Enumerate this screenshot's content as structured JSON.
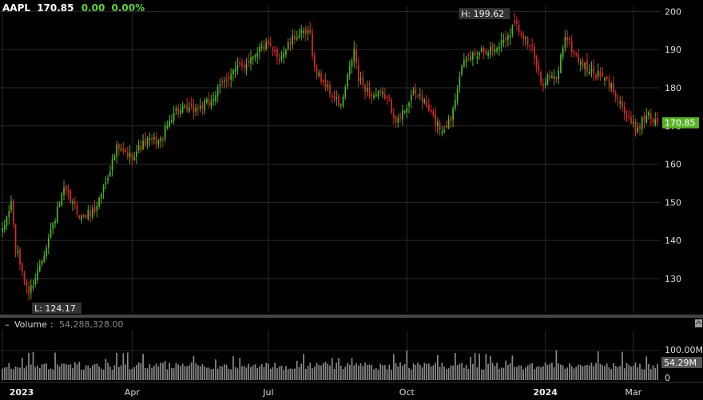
{
  "header": {
    "symbol": "AAPL",
    "last": "170.85",
    "change": "0.00",
    "change_pct": "0.00%"
  },
  "colors": {
    "up": "#4fb52a",
    "down": "#d42b2b",
    "grid": "#2a2a2a",
    "volume": "#8a8a8a",
    "last_badge": "#5bb32b"
  },
  "annotations": {
    "high_label": "H: 199.62",
    "low_label": "L: 124.17"
  },
  "volume_panel": {
    "label": "Volume",
    "value": "54,288,328.00",
    "axis_labels": [
      "100.00M",
      "0"
    ],
    "last_badge": "54.29M",
    "max": 130
  },
  "chart_data": {
    "type": "candlestick",
    "title": "AAPL",
    "last_price": 170.85,
    "last_label": "170.85",
    "ylim": [
      121,
      203
    ],
    "y_ticks": [
      130,
      140,
      150,
      160,
      170,
      180,
      190,
      200
    ],
    "x_tick_labels": [
      {
        "label": "2023",
        "bold": true,
        "index": 0
      },
      {
        "label": "Apr",
        "bold": false,
        "index": 59
      },
      {
        "label": "Jul",
        "bold": false,
        "index": 121
      },
      {
        "label": "Oct",
        "bold": false,
        "index": 184
      },
      {
        "label": "2024",
        "bold": true,
        "index": 247
      },
      {
        "label": "Mar",
        "bold": false,
        "index": 287
      }
    ],
    "high": {
      "value": 199.62,
      "index": 233
    },
    "low": {
      "value": 124.17,
      "index": 12
    },
    "close_anchors": [
      [
        0,
        142
      ],
      [
        4,
        150
      ],
      [
        6,
        138
      ],
      [
        12,
        126
      ],
      [
        16,
        132
      ],
      [
        24,
        146
      ],
      [
        28,
        153
      ],
      [
        36,
        146
      ],
      [
        42,
        148
      ],
      [
        46,
        154
      ],
      [
        52,
        164
      ],
      [
        58,
        162
      ],
      [
        66,
        166
      ],
      [
        72,
        166
      ],
      [
        78,
        174
      ],
      [
        86,
        174
      ],
      [
        94,
        176
      ],
      [
        104,
        184
      ],
      [
        110,
        186
      ],
      [
        116,
        190
      ],
      [
        120,
        191
      ],
      [
        126,
        188
      ],
      [
        134,
        194
      ],
      [
        140,
        194
      ],
      [
        142,
        185
      ],
      [
        150,
        178
      ],
      [
        154,
        175
      ],
      [
        160,
        190
      ],
      [
        162,
        182
      ],
      [
        168,
        178
      ],
      [
        174,
        178
      ],
      [
        180,
        171
      ],
      [
        186,
        178
      ],
      [
        190,
        178
      ],
      [
        196,
        172
      ],
      [
        200,
        169
      ],
      [
        204,
        172
      ],
      [
        208,
        184
      ],
      [
        212,
        188
      ],
      [
        218,
        190
      ],
      [
        224,
        190
      ],
      [
        230,
        194
      ],
      [
        233,
        197
      ],
      [
        237,
        194
      ],
      [
        241,
        190
      ],
      [
        245,
        181
      ],
      [
        248,
        183
      ],
      [
        252,
        182
      ],
      [
        256,
        194
      ],
      [
        260,
        189
      ],
      [
        264,
        186
      ],
      [
        268,
        184
      ],
      [
        272,
        183
      ],
      [
        276,
        181
      ],
      [
        280,
        178
      ],
      [
        284,
        172
      ],
      [
        288,
        169
      ],
      [
        292,
        172
      ],
      [
        294,
        174
      ],
      [
        296,
        171
      ],
      [
        298,
        170.85
      ]
    ],
    "count": 299
  }
}
